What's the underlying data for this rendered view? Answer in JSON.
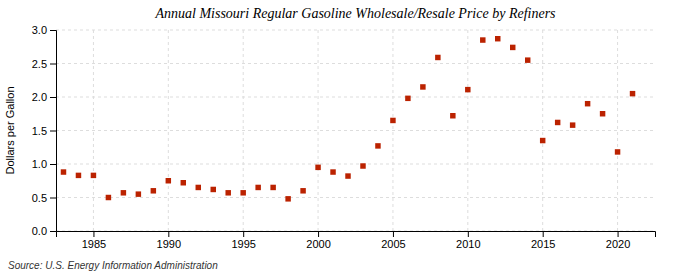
{
  "chart_data": {
    "type": "scatter",
    "title": "Annual Missouri Regular Gasoline Wholesale/Resale Price by Refiners",
    "ylabel": "Dollars per Gallon",
    "annotation": "Source: U.S. Energy Information Administration",
    "color": "#bb2200",
    "marker": "square",
    "grid": true,
    "xlim": [
      1982.5,
      2022.5
    ],
    "xticks": [
      1985,
      1990,
      1995,
      2000,
      2005,
      2010,
      2015,
      2020
    ],
    "ylim": [
      0.0,
      3.0
    ],
    "yticks": [
      {
        "value": 0.0,
        "label": "0.0"
      },
      {
        "value": 0.5,
        "label": "0.5"
      },
      {
        "value": 1.0,
        "label": "1.0"
      },
      {
        "value": 1.5,
        "label": "1.5"
      },
      {
        "value": 2.0,
        "label": "2.0"
      },
      {
        "value": 2.5,
        "label": "2.5"
      },
      {
        "value": 3.0,
        "label": "3.0"
      }
    ],
    "x": [
      1983,
      1984,
      1985,
      1986,
      1987,
      1988,
      1989,
      1990,
      1991,
      1992,
      1993,
      1994,
      1995,
      1996,
      1997,
      1998,
      1999,
      2000,
      2001,
      2002,
      2003,
      2004,
      2005,
      2006,
      2007,
      2008,
      2009,
      2010,
      2011,
      2012,
      2013,
      2014,
      2015,
      2016,
      2017,
      2018,
      2019,
      2020,
      2021
    ],
    "values": [
      0.88,
      0.83,
      0.83,
      0.5,
      0.57,
      0.55,
      0.6,
      0.75,
      0.72,
      0.65,
      0.62,
      0.57,
      0.57,
      0.65,
      0.65,
      0.48,
      0.6,
      0.95,
      0.88,
      0.82,
      0.97,
      1.27,
      1.65,
      1.98,
      2.15,
      2.59,
      1.72,
      2.11,
      2.85,
      2.87,
      2.74,
      2.55,
      1.35,
      1.62,
      1.58,
      1.9,
      1.75,
      1.18,
      2.05
    ]
  }
}
